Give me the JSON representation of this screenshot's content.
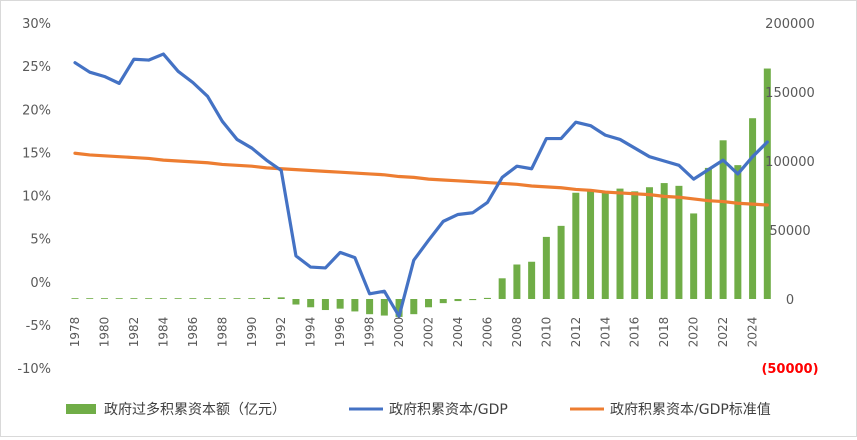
{
  "chart_data": {
    "type": "bar+line",
    "title": "",
    "categories": [
      1978,
      1979,
      1980,
      1981,
      1982,
      1983,
      1984,
      1985,
      1986,
      1987,
      1988,
      1989,
      1990,
      1991,
      1992,
      1993,
      1994,
      1995,
      1996,
      1997,
      1998,
      1999,
      2000,
      2001,
      2002,
      2003,
      2004,
      2005,
      2006,
      2007,
      2008,
      2009,
      2010,
      2011,
      2012,
      2013,
      2014,
      2015,
      2016,
      2017,
      2018,
      2019,
      2020,
      2021,
      2022,
      2023,
      2024,
      2025
    ],
    "x_tick_labels": [
      "1978",
      "1980",
      "1982",
      "1984",
      "1986",
      "1988",
      "1990",
      "1992",
      "1994",
      "1996",
      "1998",
      "2000",
      "2002",
      "2004",
      "2006",
      "2008",
      "2010",
      "2012",
      "2014",
      "2016",
      "2018",
      "2020",
      "2022",
      "2024"
    ],
    "y_left": {
      "range": [
        -0.1,
        0.3
      ],
      "tick_labels": [
        "-10%",
        "-5%",
        "0%",
        "5%",
        "10%",
        "15%",
        "20%",
        "25%",
        "30%"
      ]
    },
    "y_right": {
      "range": [
        -50000,
        200000
      ],
      "tick_labels": [
        "(50000)",
        "0",
        "50000",
        "100000",
        "150000",
        "200000"
      ],
      "negative_label_color": "#ff0000"
    },
    "grid": false,
    "legend_position": "bottom",
    "colors": {
      "bar": "#70ad47",
      "ratio_line": "#4472c4",
      "benchmark_line": "#ed7d31"
    },
    "series": [
      {
        "name": "政府过多积累资本额（亿元）",
        "type": "bar",
        "axis": "right",
        "values": [
          100,
          150,
          200,
          150,
          100,
          100,
          150,
          200,
          250,
          300,
          400,
          500,
          600,
          800,
          1200,
          -4000,
          -6000,
          -8000,
          -7000,
          -9000,
          -11000,
          -12000,
          -13000,
          -11000,
          -6000,
          -3000,
          -1500,
          -800,
          800,
          15000,
          25000,
          27000,
          45000,
          53000,
          77000,
          78000,
          78000,
          80000,
          78000,
          81000,
          84000,
          82000,
          62000,
          95000,
          115000,
          97000,
          131000,
          167000
        ]
      },
      {
        "name": "政府积累资本/GDP",
        "type": "line",
        "axis": "left",
        "values": [
          0.254,
          0.243,
          0.238,
          0.23,
          0.258,
          0.257,
          0.264,
          0.244,
          0.231,
          0.215,
          0.186,
          0.165,
          0.155,
          0.141,
          0.129,
          0.03,
          0.017,
          0.016,
          0.034,
          0.028,
          -0.014,
          -0.011,
          -0.04,
          0.025,
          0.048,
          0.07,
          0.078,
          0.08,
          0.092,
          0.121,
          0.134,
          0.131,
          0.166,
          0.166,
          0.185,
          0.181,
          0.17,
          0.165,
          0.155,
          0.145,
          0.14,
          0.135,
          0.119,
          0.13,
          0.141,
          0.125,
          0.145,
          0.162
        ]
      },
      {
        "name": "政府积累资本/GDP标准值",
        "type": "line",
        "axis": "left",
        "values": [
          0.149,
          0.147,
          0.146,
          0.145,
          0.144,
          0.143,
          0.141,
          0.14,
          0.139,
          0.138,
          0.136,
          0.135,
          0.134,
          0.132,
          0.131,
          0.13,
          0.129,
          0.128,
          0.127,
          0.126,
          0.125,
          0.124,
          0.122,
          0.121,
          0.119,
          0.118,
          0.117,
          0.116,
          0.115,
          0.114,
          0.113,
          0.111,
          0.11,
          0.109,
          0.107,
          0.106,
          0.104,
          0.103,
          0.102,
          0.101,
          0.099,
          0.098,
          0.096,
          0.094,
          0.093,
          0.091,
          0.09,
          0.089
        ]
      }
    ]
  }
}
